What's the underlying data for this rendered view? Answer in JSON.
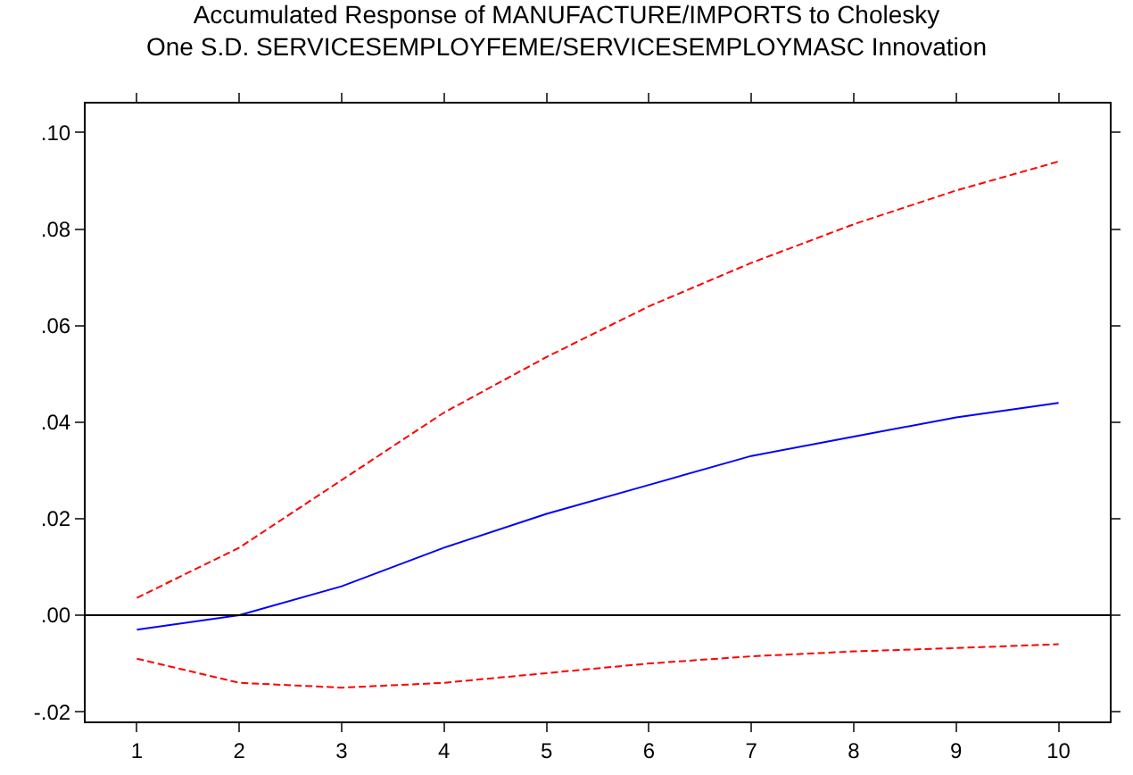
{
  "chart_data": {
    "type": "line",
    "title": "Accumulated Response of MANUFACTURE/IMPORTS to Cholesky\nOne S.D. SERVICESEMPLOYFEME/SERVICESEMPLOYMASC Innovation",
    "x": [
      1,
      2,
      3,
      4,
      5,
      6,
      7,
      8,
      9,
      10
    ],
    "xlim": [
      0.5,
      10.5
    ],
    "xticks": [
      1,
      2,
      3,
      4,
      5,
      6,
      7,
      8,
      9,
      10
    ],
    "ylim": [
      -0.022,
      0.106
    ],
    "yticks": [
      {
        "value": -0.02,
        "label": "-.02"
      },
      {
        "value": 0,
        "label": ".00"
      },
      {
        "value": 0.02,
        "label": ".02"
      },
      {
        "value": 0.04,
        "label": ".04"
      },
      {
        "value": 0.06,
        "label": ".06"
      },
      {
        "value": 0.08,
        "label": ".08"
      },
      {
        "value": 0.1,
        "label": ".10"
      }
    ],
    "series": [
      {
        "color": "#0000ff",
        "line_style": "solid",
        "values": [
          -0.003,
          0.0,
          0.006,
          0.014,
          0.021,
          0.027,
          0.033,
          0.037,
          0.041,
          0.044
        ]
      },
      {
        "color": "#ff0000",
        "line_style": "dashed",
        "values": [
          0.0036,
          0.014,
          0.028,
          0.042,
          0.0535,
          0.064,
          0.073,
          0.081,
          0.088,
          0.094
        ]
      },
      {
        "color": "#ff0000",
        "line_style": "dashed",
        "values": [
          -0.009,
          -0.014,
          -0.015,
          -0.014,
          -0.012,
          -0.01,
          -0.0085,
          -0.0075,
          -0.0068,
          -0.006
        ]
      }
    ],
    "ref_lines": [
      {
        "axis": "y",
        "value": 0,
        "color": "#000000"
      }
    ],
    "grid": false
  }
}
